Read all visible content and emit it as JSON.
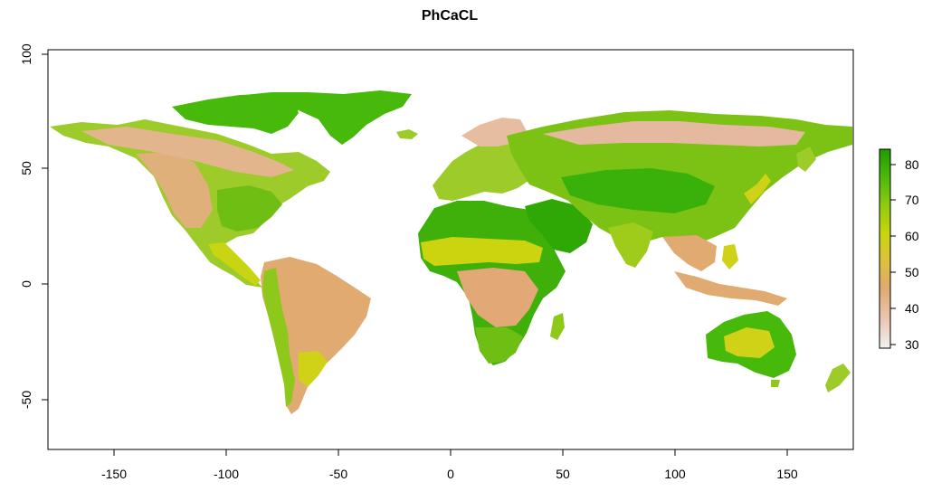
{
  "chart_data": {
    "type": "heatmap",
    "title": "PhCaCL",
    "xlabel": "",
    "ylabel": "",
    "xlim": [
      -180,
      180
    ],
    "ylim": [
      -72,
      100
    ],
    "x_ticks": [
      "-150",
      "-100",
      "-50",
      "0",
      "50",
      "100",
      "150"
    ],
    "y_ticks": [
      "-50",
      "0",
      "50",
      "100"
    ],
    "legend": {
      "position": "right",
      "range": [
        28,
        85
      ],
      "ticks": [
        "30",
        "40",
        "50",
        "60",
        "70",
        "80"
      ],
      "colors": [
        "#f2f2f2",
        "#ebc7b5",
        "#e0aa70",
        "#ddc23a",
        "#c7d60a",
        "#8ecb0f",
        "#4cb90a",
        "#1f9a00"
      ]
    },
    "grid": false
  }
}
